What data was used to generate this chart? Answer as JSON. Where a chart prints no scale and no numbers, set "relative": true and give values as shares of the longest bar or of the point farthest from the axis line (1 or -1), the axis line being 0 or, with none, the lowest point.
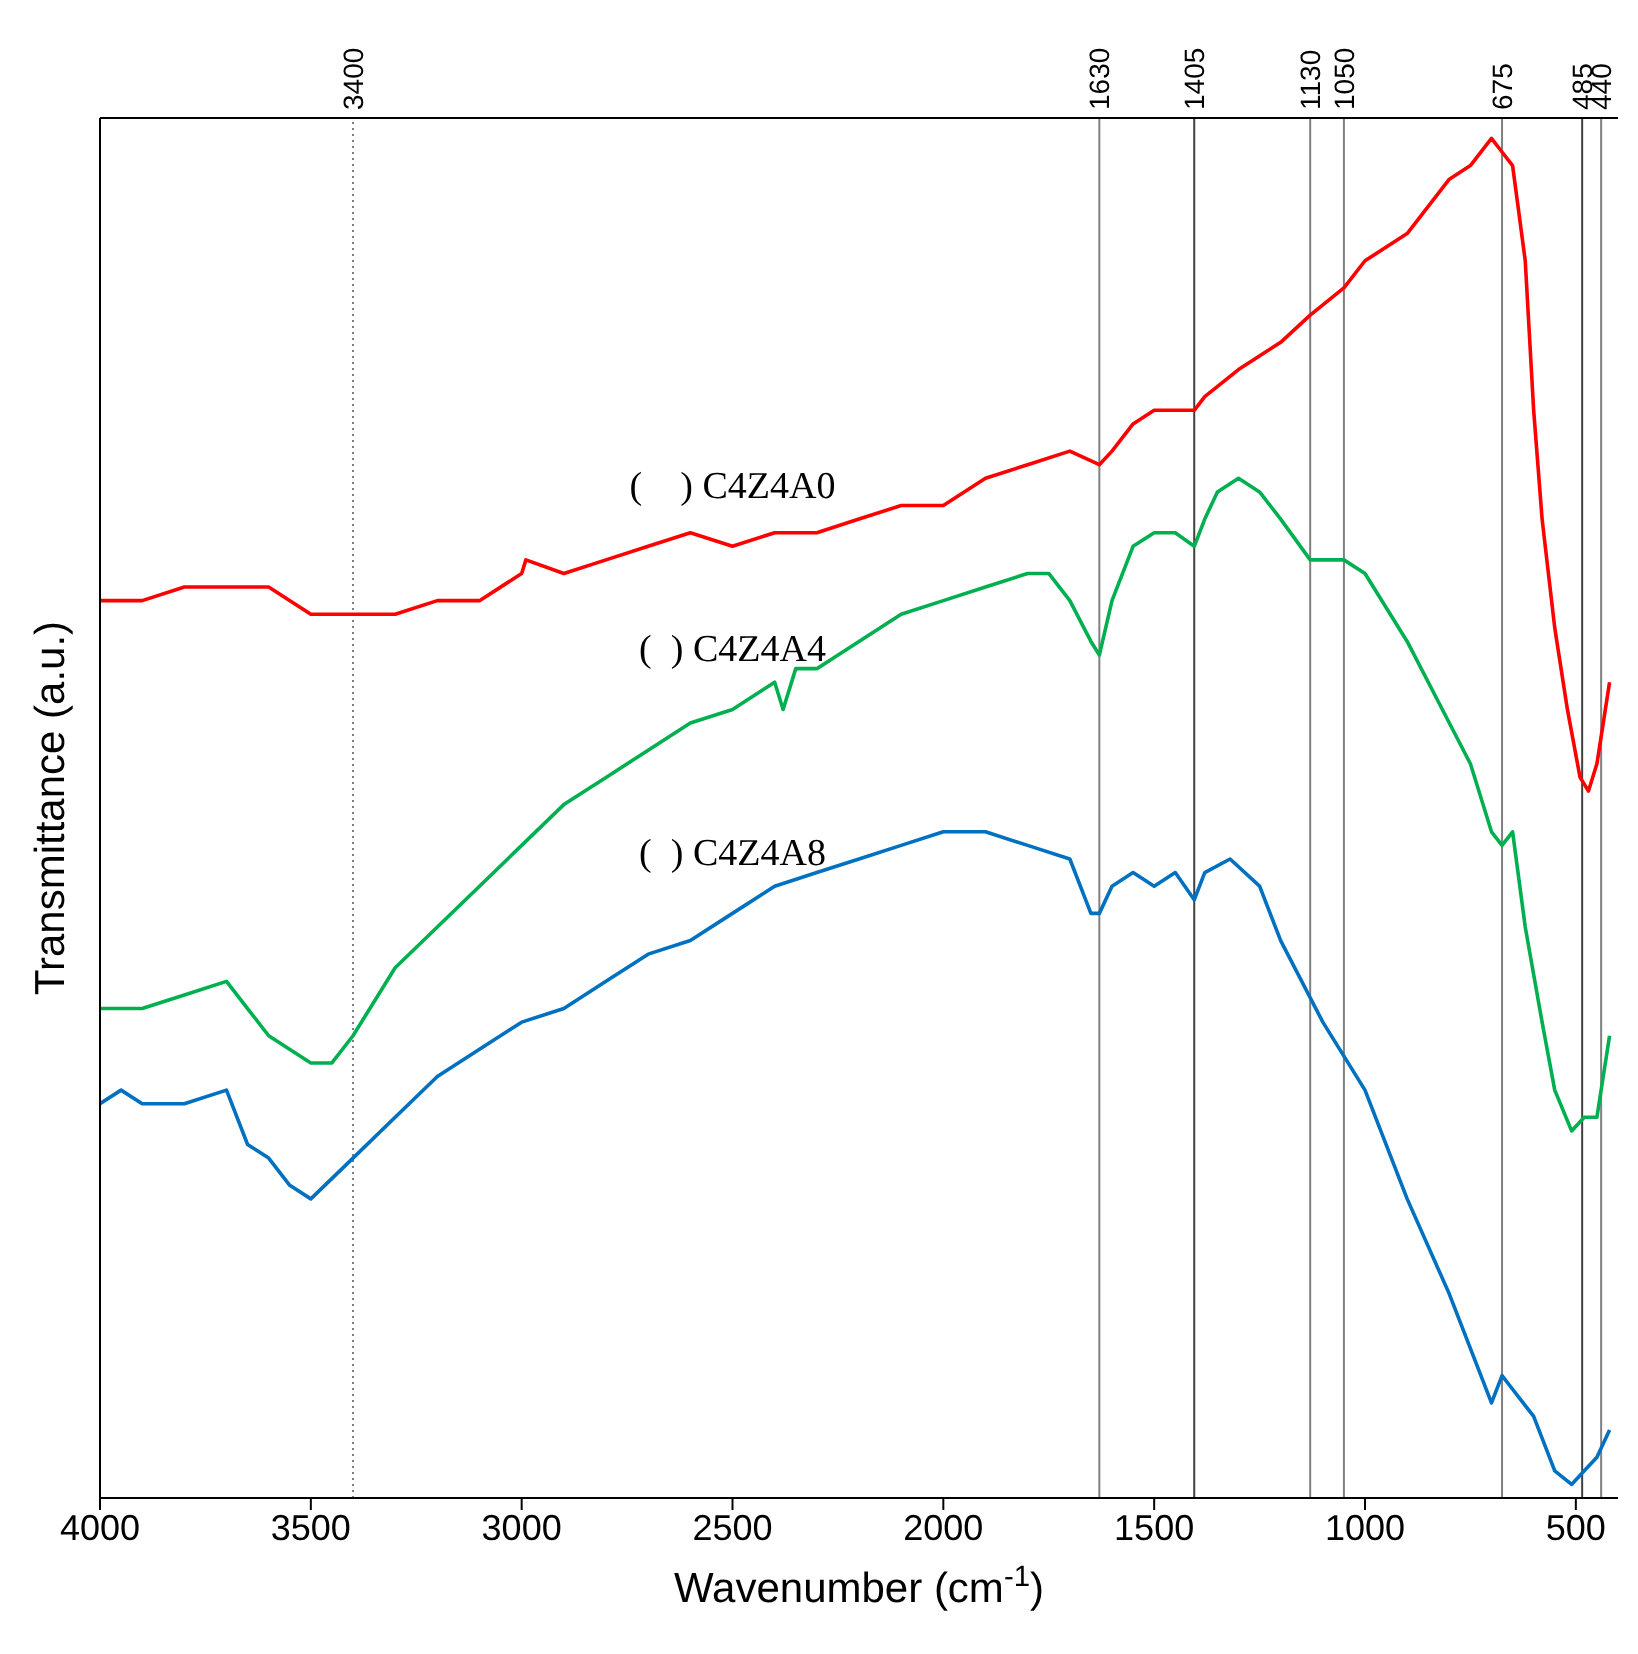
{
  "chart_data": {
    "type": "line",
    "relative": true,
    "xlabel": "Wavenumber (cm$^{-1}$)",
    "ylabel": "Transmittance (a.u.)",
    "xlim": [
      4000,
      400
    ],
    "xticks": [
      4000,
      3500,
      3000,
      2500,
      2000,
      1500,
      1000,
      500
    ],
    "grid": false,
    "legend": false,
    "marker": "none",
    "line_style": "solid",
    "series": [
      {
        "name": "(    ) C4Z4A0",
        "color": "#ff0000",
        "x": [
          4000,
          3900,
          3800,
          3700,
          3600,
          3500,
          3400,
          3300,
          3200,
          3100,
          3000,
          2990,
          2900,
          2800,
          2700,
          2600,
          2500,
          2400,
          2300,
          2200,
          2100,
          2000,
          1900,
          1800,
          1700,
          1630,
          1600,
          1550,
          1500,
          1450,
          1405,
          1380,
          1300,
          1200,
          1130,
          1050,
          1000,
          900,
          800,
          750,
          700,
          675,
          650,
          620,
          600,
          580,
          550,
          520,
          490,
          470,
          450,
          420
        ],
        "values": [
          0.66,
          0.66,
          0.67,
          0.67,
          0.67,
          0.65,
          0.65,
          0.65,
          0.66,
          0.66,
          0.68,
          0.69,
          0.68,
          0.69,
          0.7,
          0.71,
          0.7,
          0.71,
          0.71,
          0.72,
          0.73,
          0.73,
          0.75,
          0.76,
          0.77,
          0.76,
          0.77,
          0.79,
          0.8,
          0.8,
          0.8,
          0.81,
          0.83,
          0.85,
          0.87,
          0.89,
          0.91,
          0.93,
          0.97,
          0.98,
          1,
          0.99,
          0.98,
          0.91,
          0.8,
          0.72,
          0.64,
          0.58,
          0.53,
          0.52,
          0.54,
          0.6
        ]
      },
      {
        "name": "(  ) C4Z4A4",
        "color": "#00b050",
        "x": [
          4000,
          3900,
          3800,
          3700,
          3650,
          3600,
          3500,
          3450,
          3400,
          3300,
          3200,
          3100,
          3000,
          2900,
          2800,
          2700,
          2600,
          2500,
          2400,
          2380,
          2350,
          2300,
          2200,
          2100,
          2000,
          1900,
          1800,
          1750,
          1700,
          1650,
          1630,
          1600,
          1550,
          1500,
          1450,
          1405,
          1380,
          1350,
          1300,
          1250,
          1200,
          1130,
          1050,
          1000,
          900,
          800,
          750,
          700,
          675,
          650,
          620,
          580,
          550,
          510,
          480,
          450,
          420
        ],
        "values": [
          0.36,
          0.36,
          0.37,
          0.38,
          0.36,
          0.34,
          0.32,
          0.32,
          0.34,
          0.39,
          0.42,
          0.45,
          0.48,
          0.51,
          0.53,
          0.55,
          0.57,
          0.58,
          0.6,
          0.58,
          0.61,
          0.61,
          0.63,
          0.65,
          0.66,
          0.67,
          0.68,
          0.68,
          0.66,
          0.63,
          0.62,
          0.66,
          0.7,
          0.71,
          0.71,
          0.7,
          0.72,
          0.74,
          0.75,
          0.74,
          0.72,
          0.69,
          0.69,
          0.68,
          0.63,
          0.57,
          0.54,
          0.49,
          0.48,
          0.49,
          0.42,
          0.35,
          0.3,
          0.27,
          0.28,
          0.28,
          0.34
        ]
      },
      {
        "name": "(  ) C4Z4A8",
        "color": "#0070c0",
        "x": [
          4000,
          3950,
          3900,
          3850,
          3800,
          3700,
          3650,
          3600,
          3550,
          3500,
          3400,
          3300,
          3200,
          3100,
          3000,
          2900,
          2800,
          2700,
          2600,
          2500,
          2400,
          2300,
          2200,
          2100,
          2000,
          1900,
          1800,
          1700,
          1650,
          1630,
          1600,
          1550,
          1500,
          1450,
          1405,
          1380,
          1320,
          1250,
          1200,
          1100,
          1000,
          900,
          800,
          700,
          675,
          650,
          600,
          550,
          510,
          480,
          450,
          420
        ],
        "values": [
          0.29,
          0.3,
          0.29,
          0.29,
          0.29,
          0.3,
          0.26,
          0.25,
          0.23,
          0.22,
          0.25,
          0.28,
          0.31,
          0.33,
          0.35,
          0.36,
          0.38,
          0.4,
          0.41,
          0.43,
          0.45,
          0.46,
          0.47,
          0.48,
          0.49,
          0.49,
          0.48,
          0.47,
          0.43,
          0.43,
          0.45,
          0.46,
          0.45,
          0.46,
          0.44,
          0.46,
          0.47,
          0.45,
          0.41,
          0.35,
          0.3,
          0.22,
          0.15,
          0.07,
          0.09,
          0.08,
          0.06,
          0.02,
          0.01,
          0.02,
          0.03,
          0.05
        ]
      }
    ],
    "ref_lines": [
      {
        "axis": "x",
        "value": 3400,
        "label": "3400",
        "color": "#808080",
        "line_style": "dotted"
      },
      {
        "axis": "x",
        "value": 1630,
        "label": "1630",
        "color": "#808080",
        "line_style": "solid"
      },
      {
        "axis": "x",
        "value": 1405,
        "label": "1405",
        "color": "#404040",
        "line_style": "solid"
      },
      {
        "axis": "x",
        "value": 1130,
        "label": "1130",
        "color": "#808080",
        "line_style": "solid"
      },
      {
        "axis": "x",
        "value": 1050,
        "label": "1050",
        "color": "#808080",
        "line_style": "solid"
      },
      {
        "axis": "x",
        "value": 675,
        "label": "675",
        "color": "#808080",
        "line_style": "solid"
      },
      {
        "axis": "x",
        "value": 485,
        "label": "485",
        "color": "#404040",
        "line_style": "solid"
      },
      {
        "axis": "x",
        "value": 440,
        "label": "440",
        "color": "#808080",
        "line_style": "solid"
      }
    ]
  }
}
